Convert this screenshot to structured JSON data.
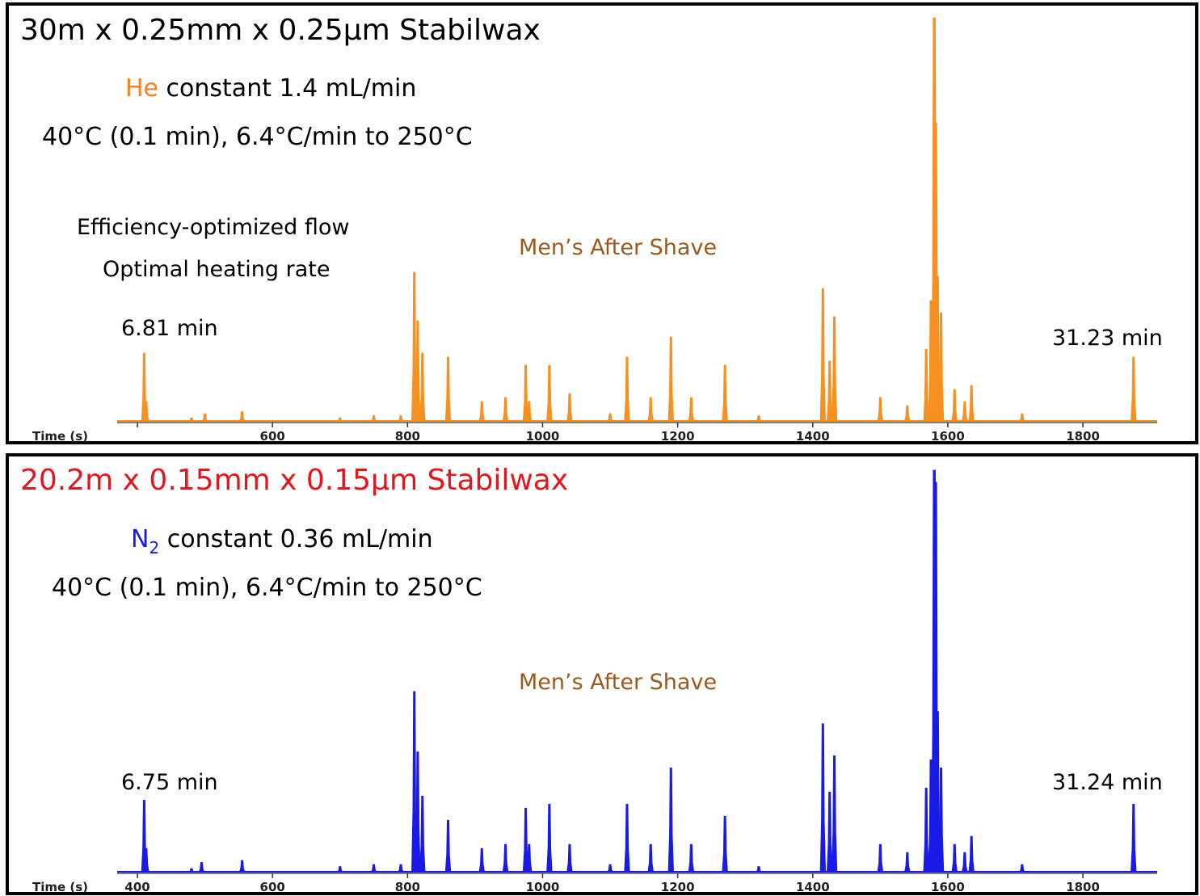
{
  "chart_data": [
    {
      "type": "line",
      "title": "30m x 0.25mm x 0.25µm Stabilwax",
      "title_color": "#000000",
      "carrier_gas": "He",
      "carrier_gas_color": "#f5821f",
      "flow_text": " constant 1.4 mL/min",
      "oven_program": "40°C (0.1 min), 6.4°C/min to 250°C",
      "notes": [
        "Efficiency-optimized flow",
        "Optimal heating rate"
      ],
      "sample_label": "Men’s After Shave",
      "sample_label_color": "#9a5a1e",
      "first_peak_label": "6.81 min",
      "last_peak_label": "31.23 min",
      "xlabel": "Time (s)",
      "xticks": [
        "",
        "600",
        "800",
        "1000",
        "1200",
        "1400",
        "1600",
        "1800"
      ],
      "xtick_values": [
        400,
        600,
        800,
        1000,
        1200,
        1400,
        1600,
        1800
      ],
      "xlim": [
        370,
        1910
      ],
      "ylim": [
        0,
        100
      ],
      "series_color": "#f7901e",
      "peaks": [
        [
          410,
          17
        ],
        [
          413,
          5
        ],
        [
          480,
          1
        ],
        [
          500,
          2
        ],
        [
          555,
          2.5
        ],
        [
          700,
          1
        ],
        [
          750,
          1.5
        ],
        [
          790,
          1.5
        ],
        [
          810,
          37
        ],
        [
          815,
          25
        ],
        [
          822,
          17
        ],
        [
          860,
          16
        ],
        [
          910,
          5
        ],
        [
          945,
          6
        ],
        [
          975,
          14
        ],
        [
          980,
          5
        ],
        [
          1010,
          14
        ],
        [
          1040,
          7
        ],
        [
          1100,
          2
        ],
        [
          1125,
          16
        ],
        [
          1160,
          6
        ],
        [
          1190,
          21
        ],
        [
          1220,
          6
        ],
        [
          1270,
          14
        ],
        [
          1320,
          1.5
        ],
        [
          1415,
          33
        ],
        [
          1425,
          15
        ],
        [
          1432,
          26
        ],
        [
          1500,
          6
        ],
        [
          1540,
          4
        ],
        [
          1568,
          18
        ],
        [
          1575,
          30
        ],
        [
          1580,
          100
        ],
        [
          1582,
          74
        ],
        [
          1585,
          36
        ],
        [
          1590,
          27
        ],
        [
          1610,
          8
        ],
        [
          1625,
          5
        ],
        [
          1635,
          9
        ],
        [
          1710,
          2
        ],
        [
          1875,
          16
        ]
      ]
    },
    {
      "type": "line",
      "title": "20.2m x 0.15mm x 0.15µm Stabilwax",
      "title_color": "#e3161c",
      "carrier_gas": "N",
      "carrier_gas_sub": "2",
      "carrier_gas_color": "#1a1ae6",
      "flow_text": " constant 0.36 mL/min",
      "oven_program": "40°C (0.1 min), 6.4°C/min to 250°C",
      "sample_label": "Men’s After Shave",
      "sample_label_color": "#9a5a1e",
      "first_peak_label": "6.75 min",
      "last_peak_label": "31.24 min",
      "xlabel": "Time (s)",
      "xticks": [
        "400",
        "600",
        "800",
        "1000",
        "1200",
        "1400",
        "1600",
        "1800"
      ],
      "xtick_values": [
        400,
        600,
        800,
        1000,
        1200,
        1400,
        1600,
        1800
      ],
      "xlim": [
        370,
        1910
      ],
      "ylim": [
        0,
        100
      ],
      "series_color": "#1a1ae6",
      "peaks": [
        [
          410,
          18
        ],
        [
          413,
          6
        ],
        [
          480,
          1
        ],
        [
          495,
          2.5
        ],
        [
          555,
          3
        ],
        [
          700,
          1.5
        ],
        [
          750,
          2
        ],
        [
          790,
          2
        ],
        [
          810,
          45
        ],
        [
          815,
          30
        ],
        [
          822,
          19
        ],
        [
          860,
          13
        ],
        [
          910,
          6
        ],
        [
          945,
          7
        ],
        [
          975,
          16
        ],
        [
          980,
          7
        ],
        [
          1010,
          17
        ],
        [
          1040,
          7
        ],
        [
          1100,
          2
        ],
        [
          1125,
          17
        ],
        [
          1160,
          7
        ],
        [
          1190,
          26
        ],
        [
          1220,
          7
        ],
        [
          1270,
          14
        ],
        [
          1320,
          1.5
        ],
        [
          1415,
          37
        ],
        [
          1425,
          20
        ],
        [
          1432,
          29
        ],
        [
          1500,
          7
        ],
        [
          1540,
          5
        ],
        [
          1568,
          21
        ],
        [
          1575,
          28
        ],
        [
          1580,
          100
        ],
        [
          1582,
          97
        ],
        [
          1585,
          40
        ],
        [
          1590,
          26
        ],
        [
          1610,
          7
        ],
        [
          1625,
          5
        ],
        [
          1635,
          9
        ],
        [
          1710,
          2
        ],
        [
          1875,
          17
        ]
      ]
    }
  ]
}
